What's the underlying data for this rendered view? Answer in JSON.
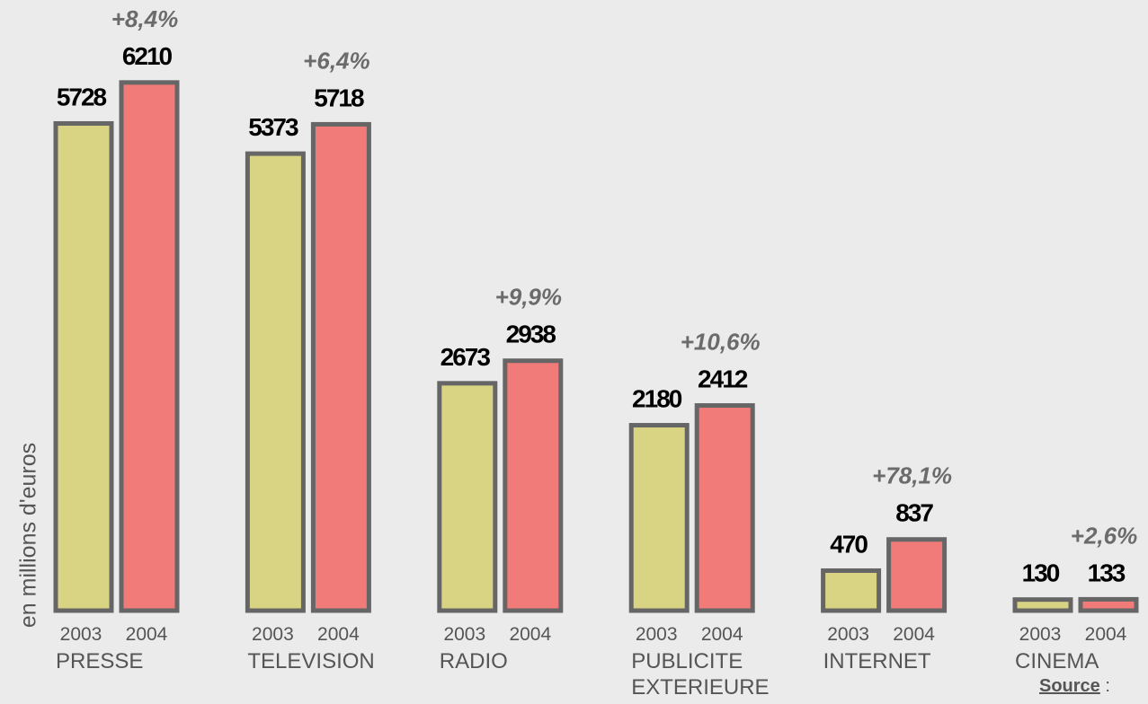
{
  "chart_data": {
    "type": "bar",
    "y_label": "en millions d'euros",
    "categories": [
      "PRESSE",
      "TELEVISION",
      "RADIO",
      "PUBLICITE EXTERIEURE",
      "INTERNET",
      "CINEMA"
    ],
    "series": [
      {
        "name": "2003",
        "color": "#d9d384",
        "values": [
          5728,
          5373,
          2673,
          2180,
          470,
          130
        ]
      },
      {
        "name": "2004",
        "color": "#f07b78",
        "values": [
          6210,
          5718,
          2938,
          2412,
          837,
          133
        ]
      }
    ],
    "annotations": [
      "+8,4%",
      "+6,4%",
      "+9,9%",
      "+10,6%",
      "+78,1%",
      "+2,6%"
    ],
    "ylim": [
      0,
      7000
    ],
    "source": {
      "label": "Source",
      "separator": ":"
    }
  }
}
